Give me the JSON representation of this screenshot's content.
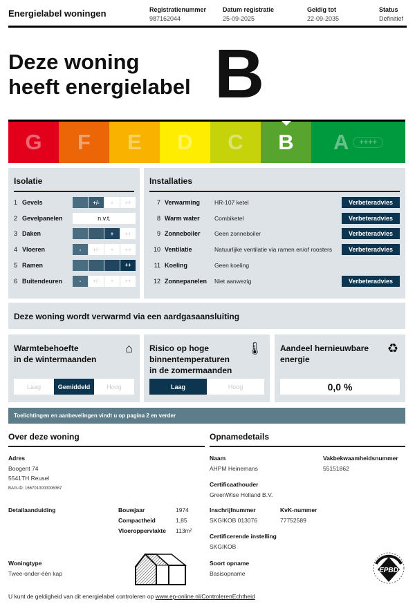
{
  "header": {
    "title": "Energielabel woningen",
    "columns": [
      {
        "label": "Registratienummer",
        "value": "987162044"
      },
      {
        "label": "Datum registratie",
        "value": "25-09-2025"
      },
      {
        "label": "Geldig tot",
        "value": "22-09-2035"
      },
      {
        "label": "Status",
        "value": "Definitief"
      }
    ]
  },
  "hero": {
    "line1": "Deze woning",
    "line2": "heeft energielabel",
    "label": "B"
  },
  "scale": {
    "classes": [
      {
        "letter": "G",
        "color": "#e2001a"
      },
      {
        "letter": "F",
        "color": "#ec6608"
      },
      {
        "letter": "E",
        "color": "#f9b200"
      },
      {
        "letter": "D",
        "color": "#ffed00"
      },
      {
        "letter": "C",
        "color": "#c6d30a"
      },
      {
        "letter": "B",
        "color": "#57a52f"
      },
      {
        "letter": "A",
        "color": "#009a3e",
        "extra": "++++"
      }
    ],
    "active": "B"
  },
  "isolatie": {
    "title": "Isolatie",
    "levels": [
      "-",
      "+/-",
      "+",
      "++"
    ],
    "fill_colors": [
      "#4b6d82",
      "#3a5b70",
      "#1f4560",
      "#0d3550"
    ],
    "items": [
      {
        "num": "1",
        "label": "Gevels",
        "rating": 2
      },
      {
        "num": "2",
        "label": "Gevelpanelen",
        "text": "n.v.t."
      },
      {
        "num": "3",
        "label": "Daken",
        "rating": 3
      },
      {
        "num": "4",
        "label": "Vloeren",
        "rating": 1
      },
      {
        "num": "5",
        "label": "Ramen",
        "rating": 4
      },
      {
        "num": "6",
        "label": "Buitendeuren",
        "rating": 1
      }
    ]
  },
  "installaties": {
    "title": "Installaties",
    "advice_label": "Verbeteradvies",
    "items": [
      {
        "num": "7",
        "label": "Verwarming",
        "value": "HR-107 ketel",
        "advice": true
      },
      {
        "num": "8",
        "label": "Warm water",
        "value": "Combiketel",
        "advice": true
      },
      {
        "num": "9",
        "label": "Zonneboiler",
        "value": "Geen zonneboiler",
        "advice": true
      },
      {
        "num": "10",
        "label": "Ventilatie",
        "value": "Natuurlijke ventilatie via ramen en/of roosters",
        "advice": true
      },
      {
        "num": "11",
        "label": "Koeling",
        "value": "Geen koeling",
        "advice": false
      },
      {
        "num": "12",
        "label": "Zonnepanelen",
        "value": "Niet aanwezig",
        "advice": true
      }
    ]
  },
  "banner": "Deze woning wordt verwarmd via een aardgasaansluiting",
  "boxes": {
    "warmte": {
      "title1": "Warmtebehoefte",
      "title2": "in de wintermaanden",
      "options": [
        "Laag",
        "Gemiddeld",
        "Hoog"
      ],
      "selected": "Gemiddeld"
    },
    "risico": {
      "title1": "Risico op hoge",
      "title2": "binnentemperaturen",
      "title3": "in de zomermaanden",
      "options": [
        "Laag",
        "Hoog"
      ],
      "selected": "Laag"
    },
    "aandeel": {
      "title1": "Aandeel hernieuwbare",
      "title2": "energie",
      "value": "0,0 %"
    }
  },
  "info": "Toelichtingen en aanbevelingen vindt u op pagina 2 en verder",
  "woning": {
    "title": "Over deze woning",
    "adres_label": "Adres",
    "adres1": "Boogent 74",
    "adres2": "5541TH Reusel",
    "bag": "BAG-ID: 1667010000006367",
    "detail_label": "Detailaanduiding",
    "bouwjaar_label": "Bouwjaar",
    "bouwjaar": "1974",
    "compact_label": "Compactheid",
    "compact": "1,85",
    "opp_label": "Vloeroppervlakte",
    "opp": "113m²",
    "type_label": "Woningtype",
    "type": "Twee-onder-één kap"
  },
  "opname": {
    "title": "Opnamedetails",
    "naam_label": "Naam",
    "naam": "AHPM Heinemans",
    "vak_label": "Vakbekwaamheidsnummer",
    "vak": "55151862",
    "cert_label": "Certificaathouder",
    "cert": "GreenWise Holland B.V.",
    "insch_label": "Inschrijfnummer",
    "insch": "SKGIKOB 013076",
    "kvk_label": "KvK-nummer",
    "kvk": "77752589",
    "inst_label": "Certificerende instelling",
    "inst": "SKGIKOB",
    "soort_label": "Soort opname",
    "soort": "Basisopname",
    "logo": "EPBD NL"
  },
  "footer": {
    "text": "U kunt de geldigheid van dit energielabel controleren op ",
    "link": "www.ep-online.nl/ControlerenEchtheid"
  }
}
